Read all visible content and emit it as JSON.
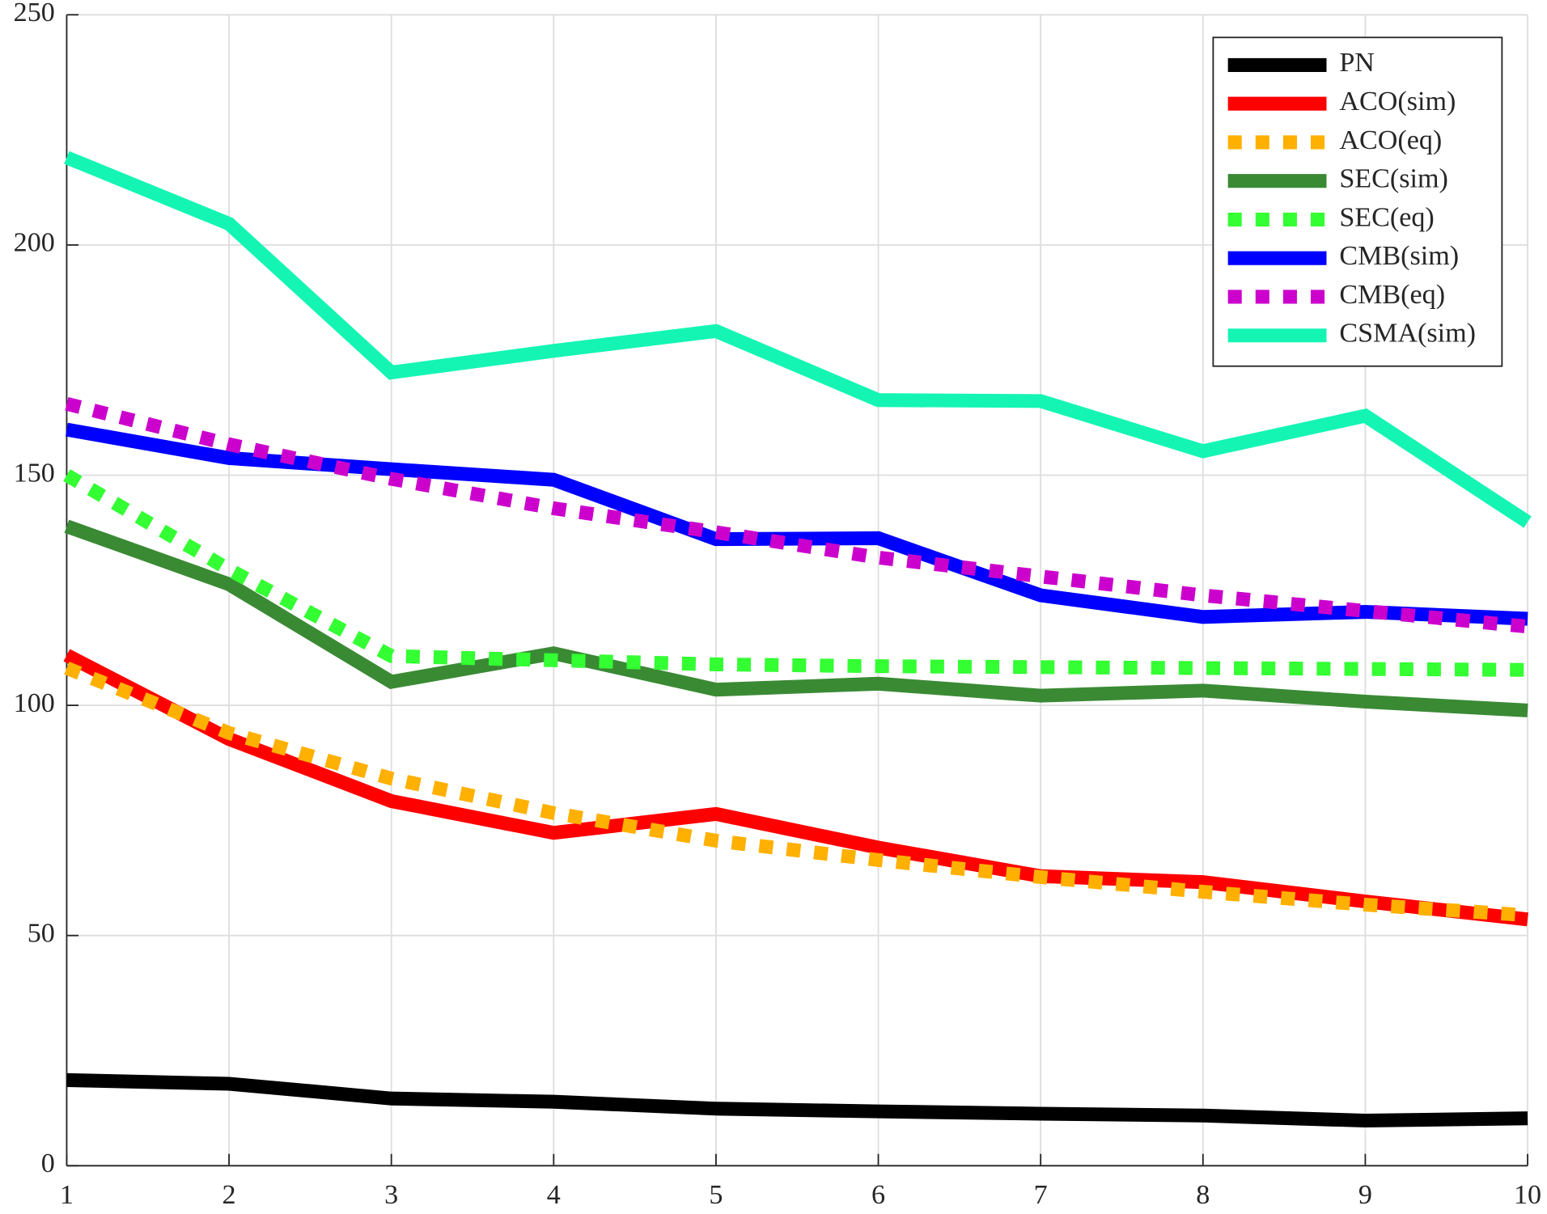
{
  "chart_data": {
    "type": "line",
    "x": [
      1,
      2,
      3,
      4,
      5,
      6,
      7,
      8,
      9,
      10
    ],
    "xlim": [
      1,
      10
    ],
    "xticks": [
      1,
      2,
      3,
      4,
      5,
      6,
      7,
      8,
      9,
      10
    ],
    "ylim": [
      0,
      250
    ],
    "yticks": [
      0,
      50,
      100,
      150,
      200,
      250
    ],
    "grid": true,
    "legend": "northeast",
    "series": [
      {
        "name": "PN",
        "color": "#000000",
        "style": "solid",
        "values": [
          18.6,
          17.8,
          14.6,
          13.9,
          12.4,
          11.8,
          11.3,
          10.9,
          9.8,
          10.3
        ]
      },
      {
        "name": "ACO(sim)",
        "color": "#ff0000",
        "style": "solid",
        "values": [
          110.9,
          92.7,
          79.2,
          72.3,
          76.4,
          69.1,
          62.9,
          61.6,
          57.4,
          53.5
        ]
      },
      {
        "name": "ACO(eq)",
        "color": "#ffb000",
        "style": "dotted",
        "values": [
          108.1,
          94.0,
          84.1,
          76.6,
          70.6,
          66.4,
          62.7,
          59.5,
          56.7,
          54.4
        ]
      },
      {
        "name": "SEC(sim)",
        "color": "#3a8a34",
        "style": "solid",
        "values": [
          138.9,
          126.3,
          105.1,
          111.3,
          103.4,
          104.7,
          102.1,
          103.2,
          100.8,
          98.9
        ]
      },
      {
        "name": "SEC(eq)",
        "color": "#33ff33",
        "style": "dotted",
        "values": [
          150.0,
          129.5,
          110.7,
          109.8,
          108.9,
          108.5,
          108.3,
          108.1,
          107.9,
          107.7
        ]
      },
      {
        "name": "CMB(sim)",
        "color": "#0000ff",
        "style": "solid",
        "values": [
          159.9,
          153.7,
          151.3,
          149.0,
          136.1,
          136.3,
          123.9,
          119.2,
          120.3,
          118.8
        ]
      },
      {
        "name": "CMB(eq)",
        "color": "#cc00cc",
        "style": "dotted",
        "values": [
          165.5,
          156.7,
          149.2,
          142.8,
          137.6,
          132.1,
          128.0,
          123.9,
          120.5,
          117.1
        ]
      },
      {
        "name": "CSMA(sim)",
        "color": "#14f5b4",
        "style": "solid",
        "values": [
          219.0,
          204.6,
          172.3,
          177.0,
          181.3,
          166.3,
          166.1,
          155.2,
          162.9,
          139.8
        ]
      }
    ]
  }
}
